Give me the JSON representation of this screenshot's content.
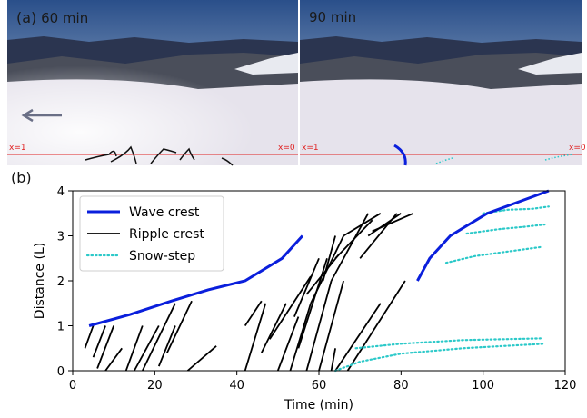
{
  "panel_a": {
    "panel_label": "(a)",
    "left": {
      "time_label": "60 min",
      "x_left": "x=1",
      "x_right": "x=0"
    },
    "right": {
      "time_label": "90 min",
      "x_left": "x=1",
      "x_right": "x=0"
    },
    "colors": {
      "sky_top": "#2a4f8a",
      "sky_bottom": "#d9dde4",
      "snow": "#e6e3ec",
      "arrow": "#6a6f86",
      "marker_line": "#e02020"
    }
  },
  "panel_b": {
    "panel_label": "(b)"
  },
  "chart_data": {
    "type": "line",
    "xlabel": "Time (min)",
    "ylabel": "Distance (L)",
    "xlim": [
      0,
      120
    ],
    "ylim": [
      0,
      4
    ],
    "xticks": [
      0,
      20,
      40,
      60,
      80,
      100,
      120
    ],
    "yticks": [
      0,
      1,
      2,
      3,
      4
    ],
    "legend_position": "top-left",
    "colors": {
      "wave": "#0a1fdc",
      "ripple": "#000000",
      "snow": "#2cc9c9"
    },
    "series": [
      {
        "name": "Wave crest",
        "style": "solid-thick",
        "segments": [
          [
            [
              4,
              1.0
            ],
            [
              14,
              1.25
            ],
            [
              24,
              1.55
            ],
            [
              33,
              1.8
            ],
            [
              42,
              2.0
            ],
            [
              51,
              2.5
            ],
            [
              56,
              3.0
            ]
          ],
          [
            [
              84,
              2.0
            ],
            [
              87,
              2.5
            ],
            [
              92,
              3.0
            ],
            [
              101,
              3.5
            ],
            [
              116,
              4.0
            ]
          ]
        ]
      },
      {
        "name": "Ripple crest",
        "style": "solid",
        "segments": [
          [
            [
              3,
              0.5
            ],
            [
              5,
              1.0
            ]
          ],
          [
            [
              5,
              0.3
            ],
            [
              8,
              1.0
            ]
          ],
          [
            [
              6,
              0.05
            ],
            [
              10,
              1.0
            ]
          ],
          [
            [
              8,
              0.0
            ],
            [
              12,
              0.5
            ]
          ],
          [
            [
              13,
              0.0
            ],
            [
              17,
              1.0
            ]
          ],
          [
            [
              15,
              0.0
            ],
            [
              21,
              1.0
            ]
          ],
          [
            [
              17,
              0.0
            ],
            [
              25,
              1.5
            ]
          ],
          [
            [
              21,
              0.1
            ],
            [
              25,
              1.0
            ]
          ],
          [
            [
              23,
              0.4
            ],
            [
              29,
              1.55
            ]
          ],
          [
            [
              28,
              0.0
            ],
            [
              35,
              0.55
            ]
          ],
          [
            [
              42,
              1.0
            ],
            [
              46,
              1.55
            ]
          ],
          [
            [
              42,
              0.0
            ],
            [
              47,
              1.5
            ]
          ],
          [
            [
              46,
              0.4
            ],
            [
              52,
              1.5
            ]
          ],
          [
            [
              48,
              0.7
            ],
            [
              58,
              2.1
            ]
          ],
          [
            [
              50,
              0.0
            ],
            [
              55,
              1.2
            ]
          ],
          [
            [
              53,
              0.0
            ],
            [
              58,
              1.5
            ]
          ],
          [
            [
              54,
              1.2
            ],
            [
              60,
              2.5
            ]
          ],
          [
            [
              55,
              0.5
            ],
            [
              62,
              2.5
            ]
          ],
          [
            [
              57,
              0.0
            ],
            [
              63,
              2.0
            ]
          ],
          [
            [
              58,
              1.5
            ],
            [
              66,
              3.0
            ]
          ],
          [
            [
              60,
              0.0
            ],
            [
              66,
              2.0
            ]
          ],
          [
            [
              61,
              2.0
            ],
            [
              64,
              3.0
            ]
          ],
          [
            [
              63,
              0.0
            ],
            [
              64,
              0.5
            ]
          ],
          [
            [
              64,
              0.0
            ],
            [
              75,
              1.5
            ]
          ],
          [
            [
              63,
              2.0
            ],
            [
              72,
              3.5
            ]
          ],
          [
            [
              64,
              2.5
            ],
            [
              73,
              3.35
            ]
          ],
          [
            [
              66,
              3.0
            ],
            [
              75,
              3.5
            ]
          ],
          [
            [
              67,
              0.0
            ],
            [
              81,
              2.0
            ]
          ],
          [
            [
              70,
              2.5
            ],
            [
              79,
              3.5
            ]
          ],
          [
            [
              72,
              3.0
            ],
            [
              80,
              3.5
            ]
          ],
          [
            [
              73,
              3.1
            ],
            [
              83,
              3.5
            ]
          ],
          [
            [
              57,
              1.7
            ],
            [
              65,
              2.6
            ]
          ]
        ]
      },
      {
        "name": "Snow-step",
        "style": "dotted",
        "segments": [
          [
            [
              64,
              0.0
            ],
            [
              70,
              0.2
            ],
            [
              80,
              0.38
            ],
            [
              95,
              0.5
            ],
            [
              115,
              0.6
            ]
          ],
          [
            [
              69,
              0.5
            ],
            [
              80,
              0.6
            ],
            [
              95,
              0.68
            ],
            [
              114,
              0.72
            ]
          ],
          [
            [
              91,
              2.4
            ],
            [
              98,
              2.55
            ],
            [
              106,
              2.65
            ],
            [
              114,
              2.75
            ]
          ],
          [
            [
              96,
              3.05
            ],
            [
              104,
              3.15
            ],
            [
              110,
              3.2
            ],
            [
              115,
              3.25
            ]
          ],
          [
            [
              100,
              3.5
            ],
            [
              106,
              3.58
            ],
            [
              112,
              3.6
            ],
            [
              116,
              3.65
            ]
          ]
        ]
      }
    ]
  }
}
